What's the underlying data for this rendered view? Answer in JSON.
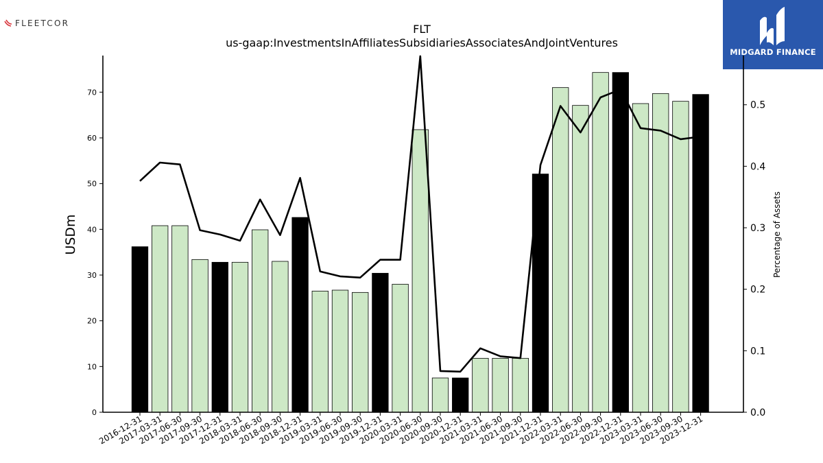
{
  "branding": {
    "left_logo": "FLEETCOR",
    "left_mark": "#d8333a",
    "right_logo": "MIDGARD FINANCE",
    "right_bg": "#2a58ad"
  },
  "chart_data": {
    "type": "bar",
    "title": "FLT",
    "subtitle": "us-gaap:InvestmentsInAffiliatesSubsidiariesAssociatesAndJointVentures",
    "ylabel": "USDm",
    "y2label": "Percentage of Assets",
    "ylim": [
      0,
      78
    ],
    "y2lim": [
      0,
      0.58
    ],
    "yticks": [
      0,
      10,
      20,
      30,
      40,
      50,
      60,
      70
    ],
    "y2ticks": [
      0.0,
      0.1,
      0.2,
      0.3,
      0.4,
      0.5
    ],
    "categories": [
      "2016-12-31",
      "2017-03-31",
      "2017-06-30",
      "2017-09-30",
      "2017-12-31",
      "2018-03-31",
      "2018-06-30",
      "2018-09-30",
      "2018-12-31",
      "2019-03-31",
      "2019-06-30",
      "2019-09-30",
      "2019-12-31",
      "2020-03-31",
      "2020-06-30",
      "2020-09-30",
      "2020-12-31",
      "2021-03-31",
      "2021-06-30",
      "2021-09-30",
      "2021-12-31",
      "2022-03-31",
      "2022-06-30",
      "2022-09-30",
      "2022-12-31",
      "2023-03-31",
      "2023-06-30",
      "2023-09-30",
      "2023-12-31"
    ],
    "series": [
      {
        "type": "bar",
        "values": [
          36.2,
          40.8,
          40.8,
          33.4,
          32.8,
          32.8,
          39.9,
          33.0,
          42.6,
          26.5,
          26.7,
          26.2,
          30.4,
          28.0,
          61.8,
          7.5,
          7.5,
          11.8,
          11.8,
          11.8,
          52.1,
          71.0,
          67.1,
          74.3,
          74.3,
          67.5,
          69.7,
          68.0,
          69.5
        ]
      },
      {
        "type": "line",
        "axis": "right",
        "values": [
          0.376,
          0.406,
          0.403,
          0.296,
          0.289,
          0.279,
          0.346,
          0.288,
          0.381,
          0.229,
          0.221,
          0.219,
          0.248,
          0.248,
          0.579,
          0.067,
          0.066,
          0.104,
          0.091,
          0.088,
          0.402,
          0.498,
          0.455,
          0.512,
          0.525,
          0.462,
          0.458,
          0.444,
          0.448
        ]
      }
    ],
    "year_end_color": "#000000",
    "quarter_color": "#cde8c6",
    "grid": false,
    "legend": "none"
  }
}
